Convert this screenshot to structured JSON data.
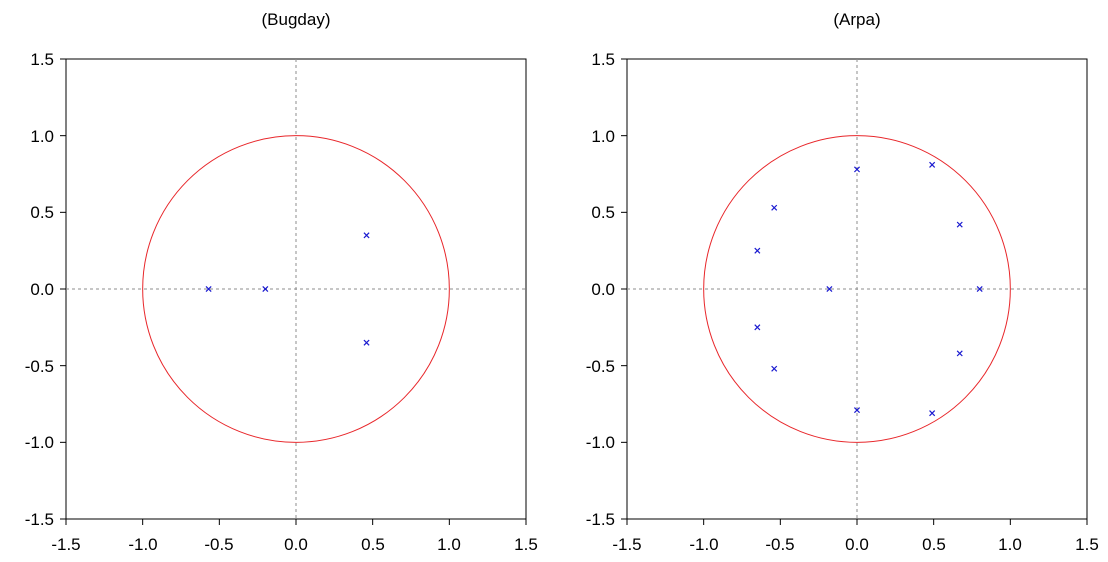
{
  "colors": {
    "circle": "#e8262a",
    "roots": "#1a1ad0",
    "reference": "#8c8c8c",
    "axes": "#000000"
  },
  "chart_data": [
    {
      "type": "scatter",
      "title": "(Bugday)",
      "xlim": [
        -1.5,
        1.5
      ],
      "ylim": [
        -1.5,
        1.5
      ],
      "xticks": [
        "-1.5",
        "-1.0",
        "-0.5",
        "0.0",
        "0.5",
        "1.0",
        "1.5"
      ],
      "yticks": [
        "1.5",
        "1.0",
        "0.5",
        "0.0",
        "-0.5",
        "-1.0",
        "-1.5"
      ],
      "unit_circle_radius": 1.0,
      "grid": false,
      "points": [
        {
          "x": -0.57,
          "y": 0.0
        },
        {
          "x": -0.2,
          "y": 0.0
        },
        {
          "x": 0.46,
          "y": 0.35
        },
        {
          "x": 0.46,
          "y": -0.35
        }
      ]
    },
    {
      "type": "scatter",
      "title": "(Arpa)",
      "xlim": [
        -1.5,
        1.5
      ],
      "ylim": [
        -1.5,
        1.5
      ],
      "xticks": [
        "-1.5",
        "-1.0",
        "-0.5",
        "0.0",
        "0.5",
        "1.0",
        "1.5"
      ],
      "yticks": [
        "1.5",
        "1.0",
        "0.5",
        "0.0",
        "-0.5",
        "-1.0",
        "-1.5"
      ],
      "unit_circle_radius": 1.0,
      "grid": false,
      "points": [
        {
          "x": -0.18,
          "y": 0.0
        },
        {
          "x": 0.8,
          "y": 0.0
        },
        {
          "x": 0.0,
          "y": 0.78
        },
        {
          "x": 0.0,
          "y": -0.79
        },
        {
          "x": 0.49,
          "y": 0.81
        },
        {
          "x": 0.49,
          "y": -0.81
        },
        {
          "x": 0.67,
          "y": 0.42
        },
        {
          "x": 0.67,
          "y": -0.42
        },
        {
          "x": -0.54,
          "y": 0.53
        },
        {
          "x": -0.54,
          "y": -0.52
        },
        {
          "x": -0.65,
          "y": 0.25
        },
        {
          "x": -0.65,
          "y": -0.25
        }
      ]
    }
  ]
}
